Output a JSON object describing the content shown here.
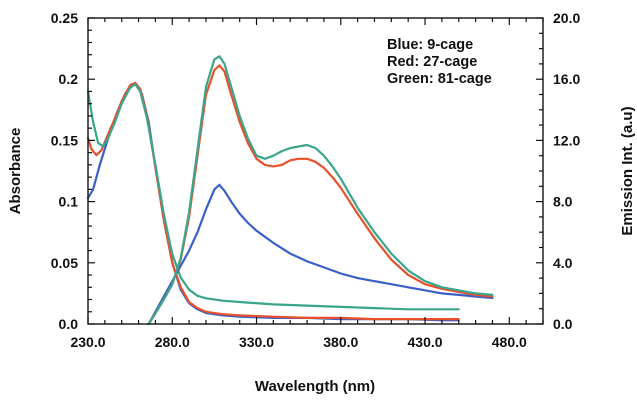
{
  "chart_data": {
    "type": "line",
    "xlabel": "Wavelength (nm)",
    "ylabel_left": "Absorbance",
    "ylabel_right": "Emission Int. (a.u)",
    "xlim": [
      230,
      500
    ],
    "ylim_left": [
      0,
      0.25
    ],
    "ylim_right": [
      0,
      20
    ],
    "x_ticks": [
      "230.0",
      "280.0",
      "330.0",
      "380.0",
      "430.0",
      "480.0"
    ],
    "x_tick_values": [
      230,
      280,
      330,
      380,
      430,
      480
    ],
    "y_left_ticks": [
      "0.0",
      "0.05",
      "0.1",
      "0.15",
      "0.2",
      "0.25"
    ],
    "y_left_tick_values": [
      0,
      0.05,
      0.1,
      0.15,
      0.2,
      0.25
    ],
    "y_right_ticks": [
      "0.0",
      "4.0",
      "8.0",
      "12.0",
      "16.0",
      "20.0"
    ],
    "y_right_tick_values": [
      0,
      4,
      8,
      12,
      16,
      20
    ],
    "grid": false,
    "legend_position": "top-right",
    "legend": [
      "Blue: 9-cage",
      "Red: 27-cage",
      "Green: 81-cage"
    ],
    "series": [
      {
        "name": "Blue: 9-cage",
        "kind": "absorbance",
        "axis": "left",
        "color": "#3a5fc8",
        "x": [
          230,
          233,
          237,
          242,
          247,
          252,
          256,
          259,
          262,
          266,
          270,
          275,
          280,
          285,
          290,
          295,
          300,
          310,
          320,
          340,
          360,
          380,
          400,
          420,
          440,
          450
        ],
        "y": [
          0.103,
          0.11,
          0.13,
          0.152,
          0.172,
          0.188,
          0.196,
          0.195,
          0.188,
          0.165,
          0.128,
          0.085,
          0.05,
          0.028,
          0.017,
          0.012,
          0.009,
          0.007,
          0.006,
          0.005,
          0.005,
          0.004,
          0.004,
          0.004,
          0.003,
          0.003
        ]
      },
      {
        "name": "Red: 27-cage",
        "kind": "absorbance",
        "axis": "left",
        "color": "#e8502c",
        "x": [
          230,
          232,
          235,
          238,
          241,
          245,
          250,
          255,
          258,
          261,
          265,
          270,
          275,
          280,
          285,
          290,
          295,
          300,
          310,
          320,
          340,
          360,
          380,
          400,
          420,
          440,
          450
        ],
        "y": [
          0.152,
          0.143,
          0.138,
          0.142,
          0.152,
          0.165,
          0.182,
          0.195,
          0.197,
          0.192,
          0.17,
          0.128,
          0.085,
          0.05,
          0.03,
          0.018,
          0.013,
          0.01,
          0.008,
          0.007,
          0.006,
          0.005,
          0.005,
          0.004,
          0.004,
          0.004,
          0.004
        ]
      },
      {
        "name": "Green: 81-cage",
        "kind": "absorbance",
        "axis": "left",
        "color": "#3aa58a",
        "x": [
          230,
          233,
          236,
          239,
          242,
          246,
          250,
          255,
          258,
          261,
          265,
          270,
          275,
          280,
          285,
          290,
          295,
          300,
          310,
          320,
          340,
          360,
          380,
          400,
          420,
          440,
          450
        ],
        "y": [
          0.19,
          0.165,
          0.148,
          0.145,
          0.152,
          0.165,
          0.18,
          0.193,
          0.196,
          0.19,
          0.168,
          0.13,
          0.09,
          0.057,
          0.038,
          0.028,
          0.023,
          0.021,
          0.019,
          0.018,
          0.016,
          0.015,
          0.014,
          0.013,
          0.012,
          0.012,
          0.012
        ]
      },
      {
        "name": "Blue: 9-cage",
        "kind": "emission",
        "axis": "right",
        "color": "#3a5fc8",
        "x": [
          266,
          270,
          275,
          280,
          285,
          290,
          295,
          300,
          305,
          308,
          311,
          315,
          320,
          325,
          330,
          340,
          350,
          360,
          370,
          380,
          390,
          400,
          410,
          420,
          430,
          440,
          450,
          460,
          470
        ],
        "y": [
          0,
          0.8,
          1.8,
          2.8,
          3.8,
          4.8,
          6.0,
          7.5,
          8.8,
          9.1,
          8.7,
          8.0,
          7.2,
          6.6,
          6.1,
          5.3,
          4.6,
          4.1,
          3.7,
          3.3,
          3.0,
          2.8,
          2.6,
          2.4,
          2.2,
          2.0,
          1.9,
          1.8,
          1.7
        ]
      },
      {
        "name": "Red: 27-cage",
        "kind": "emission",
        "axis": "right",
        "color": "#e8502c",
        "x": [
          266,
          270,
          275,
          280,
          285,
          290,
          295,
          300,
          305,
          308,
          311,
          315,
          320,
          325,
          330,
          335,
          340,
          345,
          350,
          355,
          360,
          365,
          370,
          375,
          380,
          390,
          400,
          410,
          420,
          430,
          440,
          450,
          460,
          470
        ],
        "y": [
          0,
          0.7,
          1.6,
          2.6,
          4.2,
          7.0,
          11.0,
          15.0,
          16.6,
          16.9,
          16.5,
          15.0,
          13.2,
          11.8,
          10.8,
          10.4,
          10.3,
          10.4,
          10.7,
          10.8,
          10.8,
          10.6,
          10.2,
          9.6,
          8.9,
          7.2,
          5.6,
          4.2,
          3.2,
          2.6,
          2.3,
          2.1,
          1.9,
          1.8
        ]
      },
      {
        "name": "Green: 81-cage",
        "kind": "emission",
        "axis": "right",
        "color": "#3aa58a",
        "x": [
          266,
          270,
          275,
          280,
          285,
          290,
          295,
          300,
          305,
          308,
          311,
          315,
          320,
          325,
          330,
          335,
          340,
          345,
          350,
          355,
          360,
          365,
          370,
          375,
          380,
          390,
          400,
          410,
          420,
          430,
          440,
          450,
          460,
          470
        ],
        "y": [
          0,
          0.7,
          1.6,
          2.6,
          4.3,
          7.3,
          11.4,
          15.5,
          17.3,
          17.5,
          17.0,
          15.5,
          13.6,
          12.1,
          11.0,
          10.8,
          11.0,
          11.3,
          11.5,
          11.6,
          11.7,
          11.5,
          11.0,
          10.3,
          9.5,
          7.6,
          6.0,
          4.6,
          3.5,
          2.8,
          2.4,
          2.2,
          2.0,
          1.9
        ]
      }
    ]
  }
}
